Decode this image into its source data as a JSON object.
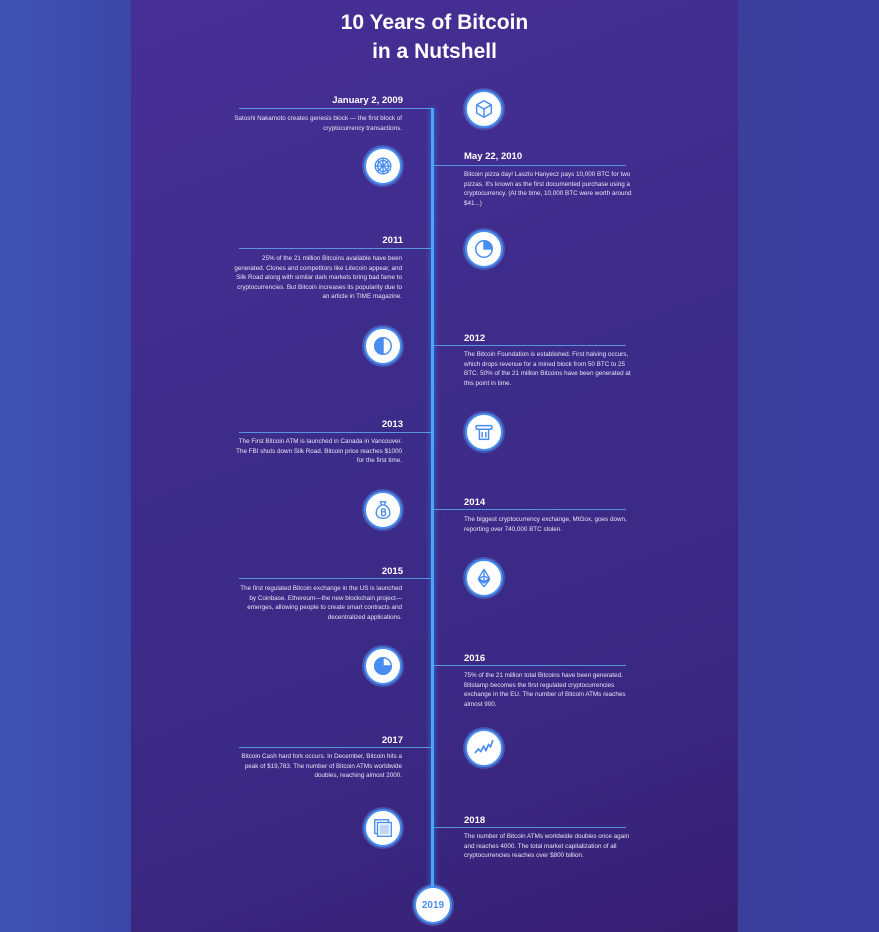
{
  "title": {
    "line1": "10 Years of Bitcoin",
    "line2": "in a Nutshell"
  },
  "accent_color": "#4a8df0",
  "end_label": "2019",
  "events": [
    {
      "year": "January 2, 2009",
      "side": "left",
      "icon": "cube-icon",
      "text": "Satoshi Nakamoto creates genesis block — the first block of cryptocurrency transactions."
    },
    {
      "year": "May 22, 2010",
      "side": "right",
      "icon": "pizza-icon",
      "text": "Bitcoin pizza day! Laszlo Hanyecz pays 10,000 BTC for two pizzas. It's known as the first documented purchase using a cryptocurrency. (At the time, 10,000 BTC were worth around $41...)"
    },
    {
      "year": "2011",
      "side": "left",
      "icon": "pie-quarter-icon",
      "text": "25% of the 21 million Bitcoins available have been generated. Clones and competitors like Litecoin appear, and Silk Road along with similar dark markets bring bad fame to cryptocurrencies. But Bitcoin increases its popularity due to an article in TIME magazine."
    },
    {
      "year": "2012",
      "side": "right",
      "icon": "half-circle-icon",
      "text": "The Bitcoin Foundation is established. First halving occurs, which drops revenue for a mined block from 50 BTC to 25 BTC. 50% of the 21 million Bitcoins have been generated at this point in time."
    },
    {
      "year": "2013",
      "side": "left",
      "icon": "atm-icon",
      "text": "The First Bitcoin ATM is launched in Canada in Vancouver. The FBI shuts down Silk Road. Bitcoin price reaches $1000 for the first time."
    },
    {
      "year": "2014",
      "side": "right",
      "icon": "money-bag-icon",
      "text": "The biggest cryptocurrency exchange, MtGox, goes down, reporting over 740,000 BTC stolen."
    },
    {
      "year": "2015",
      "side": "left",
      "icon": "ethereum-icon",
      "text": "The first regulated Bitcoin exchange in the US is launched by Coinbase. Ethereum—the new blockchain project—emerges, allowing people to create smart contracts and decentralized applications."
    },
    {
      "year": "2016",
      "side": "right",
      "icon": "pie-three-quarter-icon",
      "text": "75% of the 21 million total Bitcoins have been generated. Bitstamp becomes the first regulated cryptocurrencies exchange in the EU. The number of Bitcoin ATMs reaches almost 900."
    },
    {
      "year": "2017",
      "side": "left",
      "icon": "price-chart-icon",
      "text": "Bitcoin Cash hard fork occurs. In December, Bitcoin hits a peak of $19,783. The number of Bitcoin ATMs worldwide doubles, reaching almost 2000."
    },
    {
      "year": "2018",
      "side": "right",
      "icon": "stacked-cards-icon",
      "text": "The number of Bitcoin ATMs worldwide doubles once again and reaches 4000. The total market capitalization of all cryptocurrencies reaches over $800 billion."
    }
  ]
}
